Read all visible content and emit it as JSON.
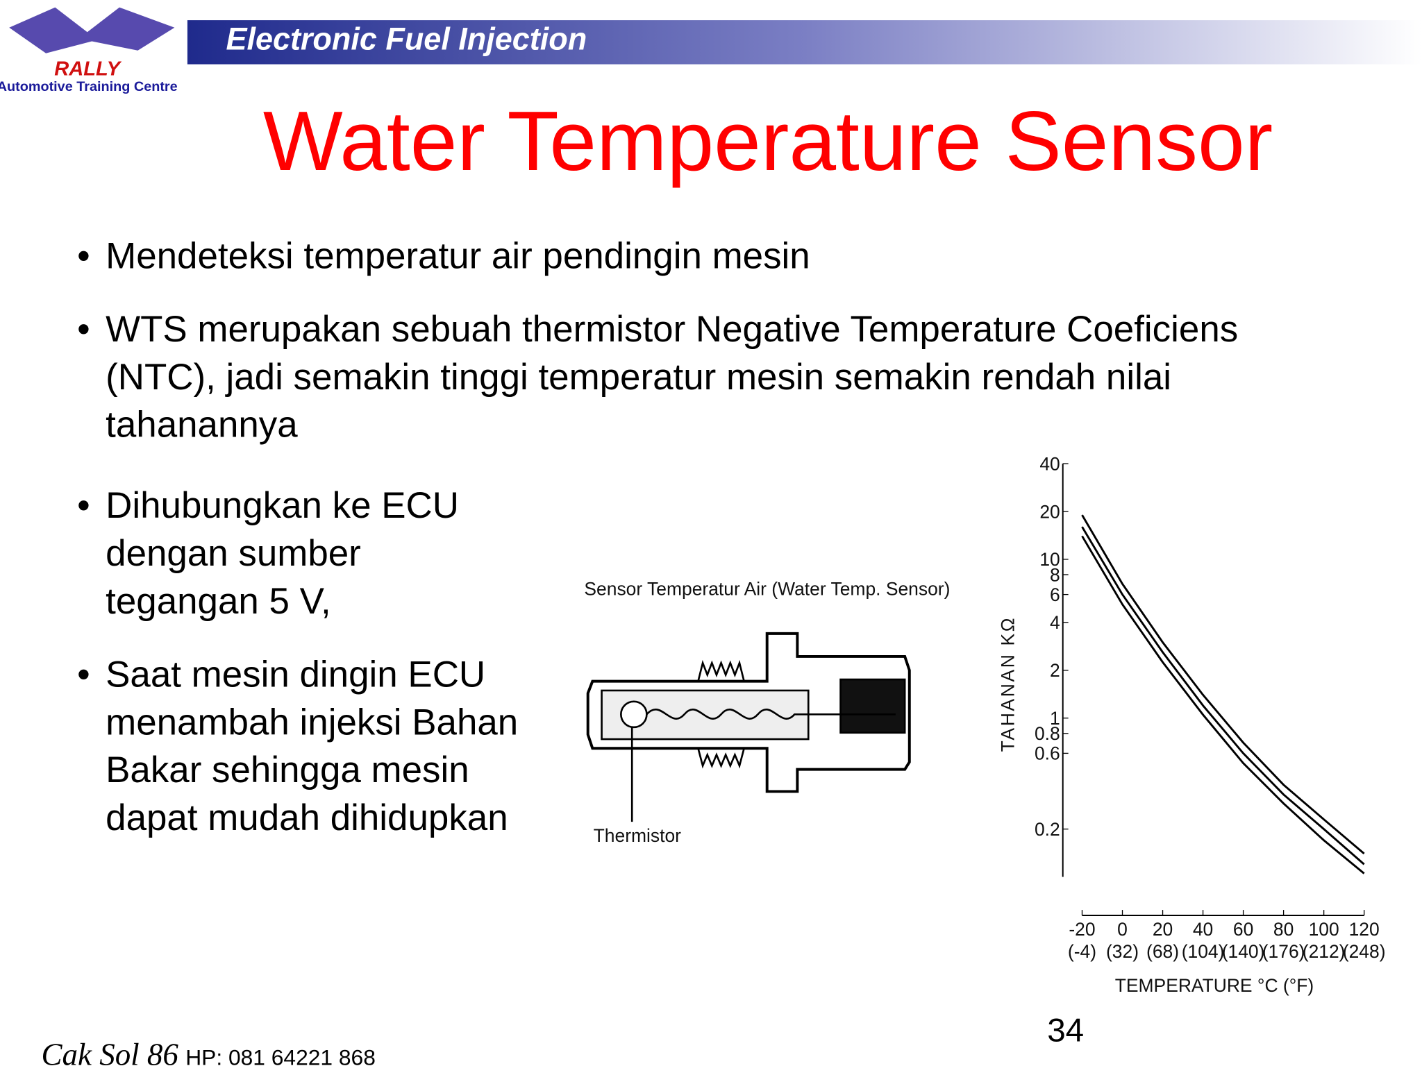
{
  "header": {
    "logo": "RALLY",
    "logo_subtitle": "Automotive Training Centre",
    "banner": "Electronic Fuel Injection",
    "title": "Water Temperature Sensor"
  },
  "bullets": [
    [
      "Mendeteksi temperatur air pendingin mesin"
    ],
    [
      "WTS merupakan sebuah thermistor Negative Temperature Coeficiens",
      "(NTC), jadi semakin tinggi temperatur mesin semakin rendah nilai",
      "tahanannya"
    ],
    [
      "Dihubungkan ke ECU",
      "dengan sumber",
      "tegangan 5 V,"
    ],
    [
      "Saat mesin dingin ECU",
      "menambah injeksi Bahan",
      "Bakar sehingga mesin",
      "dapat mudah dihidupkan"
    ]
  ],
  "diagram": {
    "title": "Sensor Temperatur Air (Water Temp. Sensor)",
    "label": "Thermistor"
  },
  "chart_data": {
    "type": "line",
    "yscale": "log",
    "ylabel": "TAHANAN KΩ",
    "xlabel": "TEMPERATURE °C (°F)",
    "x": [
      -20,
      0,
      20,
      40,
      60,
      80,
      100,
      120
    ],
    "series": [
      {
        "color": "#000000",
        "values": [
          19,
          7,
          3,
          1.4,
          0.7,
          0.38,
          0.23,
          0.14
        ]
      },
      {
        "color": "#000000",
        "values": [
          16,
          6,
          2.6,
          1.2,
          0.6,
          0.33,
          0.2,
          0.12
        ]
      },
      {
        "color": "#000000",
        "values": [
          14,
          5.2,
          2.25,
          1.05,
          0.52,
          0.29,
          0.17,
          0.105
        ]
      }
    ],
    "xlim": [
      -20,
      120
    ],
    "xticks": [
      -20,
      0,
      20,
      40,
      60,
      80,
      100,
      120
    ],
    "xticks_f": [
      "(-4)",
      "(32)",
      "(68)",
      "(104)",
      "(140)",
      "(176)",
      "(212)",
      "(248)"
    ],
    "ylim": [
      0.1,
      40
    ],
    "yticks": [
      40,
      20,
      10,
      8,
      6,
      4,
      2,
      1,
      0.8,
      0.6,
      0.2
    ]
  },
  "footer": {
    "author": "Cak Sol 86",
    "phone": "HP: 081 64221 868",
    "page": "34"
  }
}
